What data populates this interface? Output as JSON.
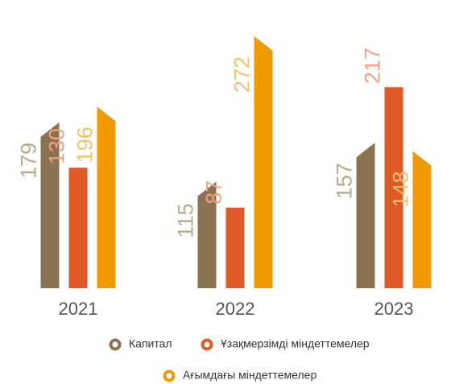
{
  "chart_data": {
    "type": "bar",
    "categories": [
      "2021",
      "2022",
      "2023"
    ],
    "series": [
      {
        "name": "Капитал",
        "color": "#8a7350",
        "values": [
          179,
          115,
          157
        ]
      },
      {
        "name": "Ұзақмерзімді міндеттемелер",
        "color": "#e05a28",
        "values": [
          130,
          87,
          217
        ]
      },
      {
        "name": "Ағымдағы міндеттемелер",
        "color": "#ee9a00",
        "values": [
          196,
          272,
          148
        ]
      }
    ]
  }
}
